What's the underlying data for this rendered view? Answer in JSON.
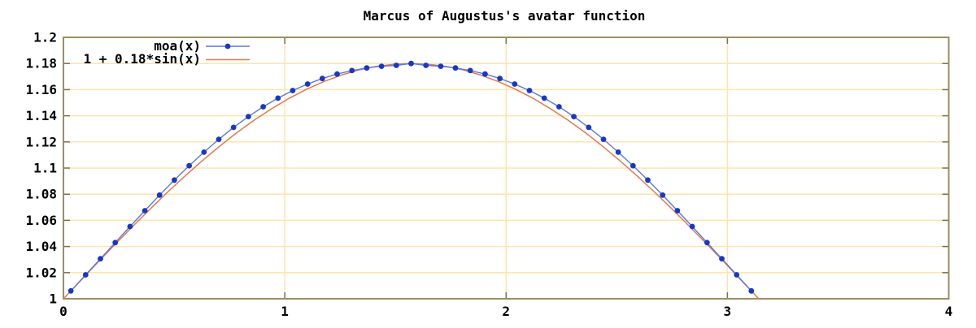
{
  "title": "Marcus of Augustus's avatar function",
  "colors": {
    "background": "#ffffff",
    "grid": "#ffe3ae",
    "border": "#9b8e62",
    "tick": "#7a7050",
    "text": "#000000",
    "moa_point": "#1838c4",
    "moa_line": "#5a78e0",
    "sin_line": "#e2794e"
  },
  "legend": {
    "position": "top-left",
    "items": [
      {
        "label": "moa(x)",
        "series": "moa",
        "style": "linespoints"
      },
      {
        "label": "1 + 0.18*sin(x)",
        "series": "sin",
        "style": "line"
      }
    ]
  },
  "axes": {
    "x": {
      "min": 0,
      "max": 4,
      "ticks": [
        0,
        1,
        2,
        3,
        4
      ],
      "tick_labels": [
        "0",
        "1",
        "2",
        "3",
        "4"
      ]
    },
    "y": {
      "min": 1,
      "max": 1.2,
      "ticks": [
        1,
        1.02,
        1.04,
        1.06,
        1.08,
        1.1,
        1.12,
        1.14,
        1.16,
        1.18,
        1.2
      ],
      "tick_labels": [
        "1",
        "1.02",
        "1.04",
        "1.06",
        "1.08",
        "1.1",
        "1.12",
        "1.14",
        "1.16",
        "1.18",
        "1.2"
      ]
    }
  },
  "chart_data": {
    "type": "line",
    "title": "Marcus of Augustus's avatar function",
    "xlabel": "",
    "ylabel": "",
    "xlim": [
      0,
      4
    ],
    "ylim": [
      1,
      1.2
    ],
    "grid": true,
    "legend_position": "top-left",
    "series": [
      {
        "name": "moa(x)",
        "style": "linespoints",
        "color": "#1838c4",
        "points": [
          [
            0.0334,
            1.006
          ],
          [
            0.1003,
            1.0183
          ],
          [
            0.1671,
            1.0306
          ],
          [
            0.234,
            1.043
          ],
          [
            0.3008,
            1.0553
          ],
          [
            0.3677,
            1.0674
          ],
          [
            0.4345,
            1.0793
          ],
          [
            0.5013,
            1.0908
          ],
          [
            0.5682,
            1.1018
          ],
          [
            0.635,
            1.1122
          ],
          [
            0.7019,
            1.122
          ],
          [
            0.7687,
            1.1311
          ],
          [
            0.8356,
            1.1394
          ],
          [
            0.9024,
            1.1469
          ],
          [
            0.9693,
            1.1535
          ],
          [
            1.0361,
            1.1593
          ],
          [
            1.103,
            1.1643
          ],
          [
            1.1698,
            1.1685
          ],
          [
            1.2367,
            1.1719
          ],
          [
            1.3035,
            1.1746
          ],
          [
            1.3704,
            1.1766
          ],
          [
            1.4372,
            1.1779
          ],
          [
            1.504,
            1.1786
          ],
          [
            1.5709,
            1.18
          ],
          [
            1.6377,
            1.1786
          ],
          [
            1.7046,
            1.1779
          ],
          [
            1.7714,
            1.1766
          ],
          [
            1.8383,
            1.1746
          ],
          [
            1.9051,
            1.1719
          ],
          [
            1.972,
            1.1685
          ],
          [
            2.0388,
            1.1643
          ],
          [
            2.1056,
            1.1593
          ],
          [
            2.1725,
            1.1535
          ],
          [
            2.2393,
            1.1469
          ],
          [
            2.3062,
            1.1394
          ],
          [
            2.373,
            1.1311
          ],
          [
            2.4399,
            1.122
          ],
          [
            2.5067,
            1.1122
          ],
          [
            2.5736,
            1.1018
          ],
          [
            2.6404,
            1.0908
          ],
          [
            2.7073,
            1.0793
          ],
          [
            2.7741,
            1.0674
          ],
          [
            2.841,
            1.0553
          ],
          [
            2.9078,
            1.043
          ],
          [
            2.9747,
            1.0306
          ],
          [
            3.0415,
            1.0183
          ],
          [
            3.1082,
            1.006
          ]
        ]
      },
      {
        "name": "1 + 0.18*sin(x)",
        "style": "lines",
        "color": "#e2794e",
        "points": [
          [
            0.0,
            1.0
          ],
          [
            0.0785,
            1.0141
          ],
          [
            0.1571,
            1.0282
          ],
          [
            0.2356,
            1.042
          ],
          [
            0.3142,
            1.0556
          ],
          [
            0.3927,
            1.0689
          ],
          [
            0.4712,
            1.0817
          ],
          [
            0.5498,
            1.094
          ],
          [
            0.6283,
            1.1058
          ],
          [
            0.7069,
            1.1169
          ],
          [
            0.7854,
            1.1273
          ],
          [
            0.8639,
            1.1369
          ],
          [
            0.9425,
            1.1456
          ],
          [
            1.021,
            1.1535
          ],
          [
            1.0996,
            1.1604
          ],
          [
            1.1781,
            1.1663
          ],
          [
            1.2566,
            1.1712
          ],
          [
            1.3352,
            1.175
          ],
          [
            1.4137,
            1.1778
          ],
          [
            1.4923,
            1.1794
          ],
          [
            1.5708,
            1.18
          ],
          [
            1.6493,
            1.1794
          ],
          [
            1.7279,
            1.1778
          ],
          [
            1.8064,
            1.175
          ],
          [
            1.885,
            1.1712
          ],
          [
            1.9635,
            1.1663
          ],
          [
            2.042,
            1.1604
          ],
          [
            2.1206,
            1.1535
          ],
          [
            2.1991,
            1.1456
          ],
          [
            2.2777,
            1.1369
          ],
          [
            2.3562,
            1.1273
          ],
          [
            2.4347,
            1.1169
          ],
          [
            2.5133,
            1.1058
          ],
          [
            2.5918,
            1.094
          ],
          [
            2.6704,
            1.0817
          ],
          [
            2.7489,
            1.0689
          ],
          [
            2.8274,
            1.0556
          ],
          [
            2.906,
            1.042
          ],
          [
            2.9845,
            1.0282
          ],
          [
            3.0631,
            1.0141
          ],
          [
            3.1416,
            1.0
          ]
        ]
      }
    ]
  }
}
